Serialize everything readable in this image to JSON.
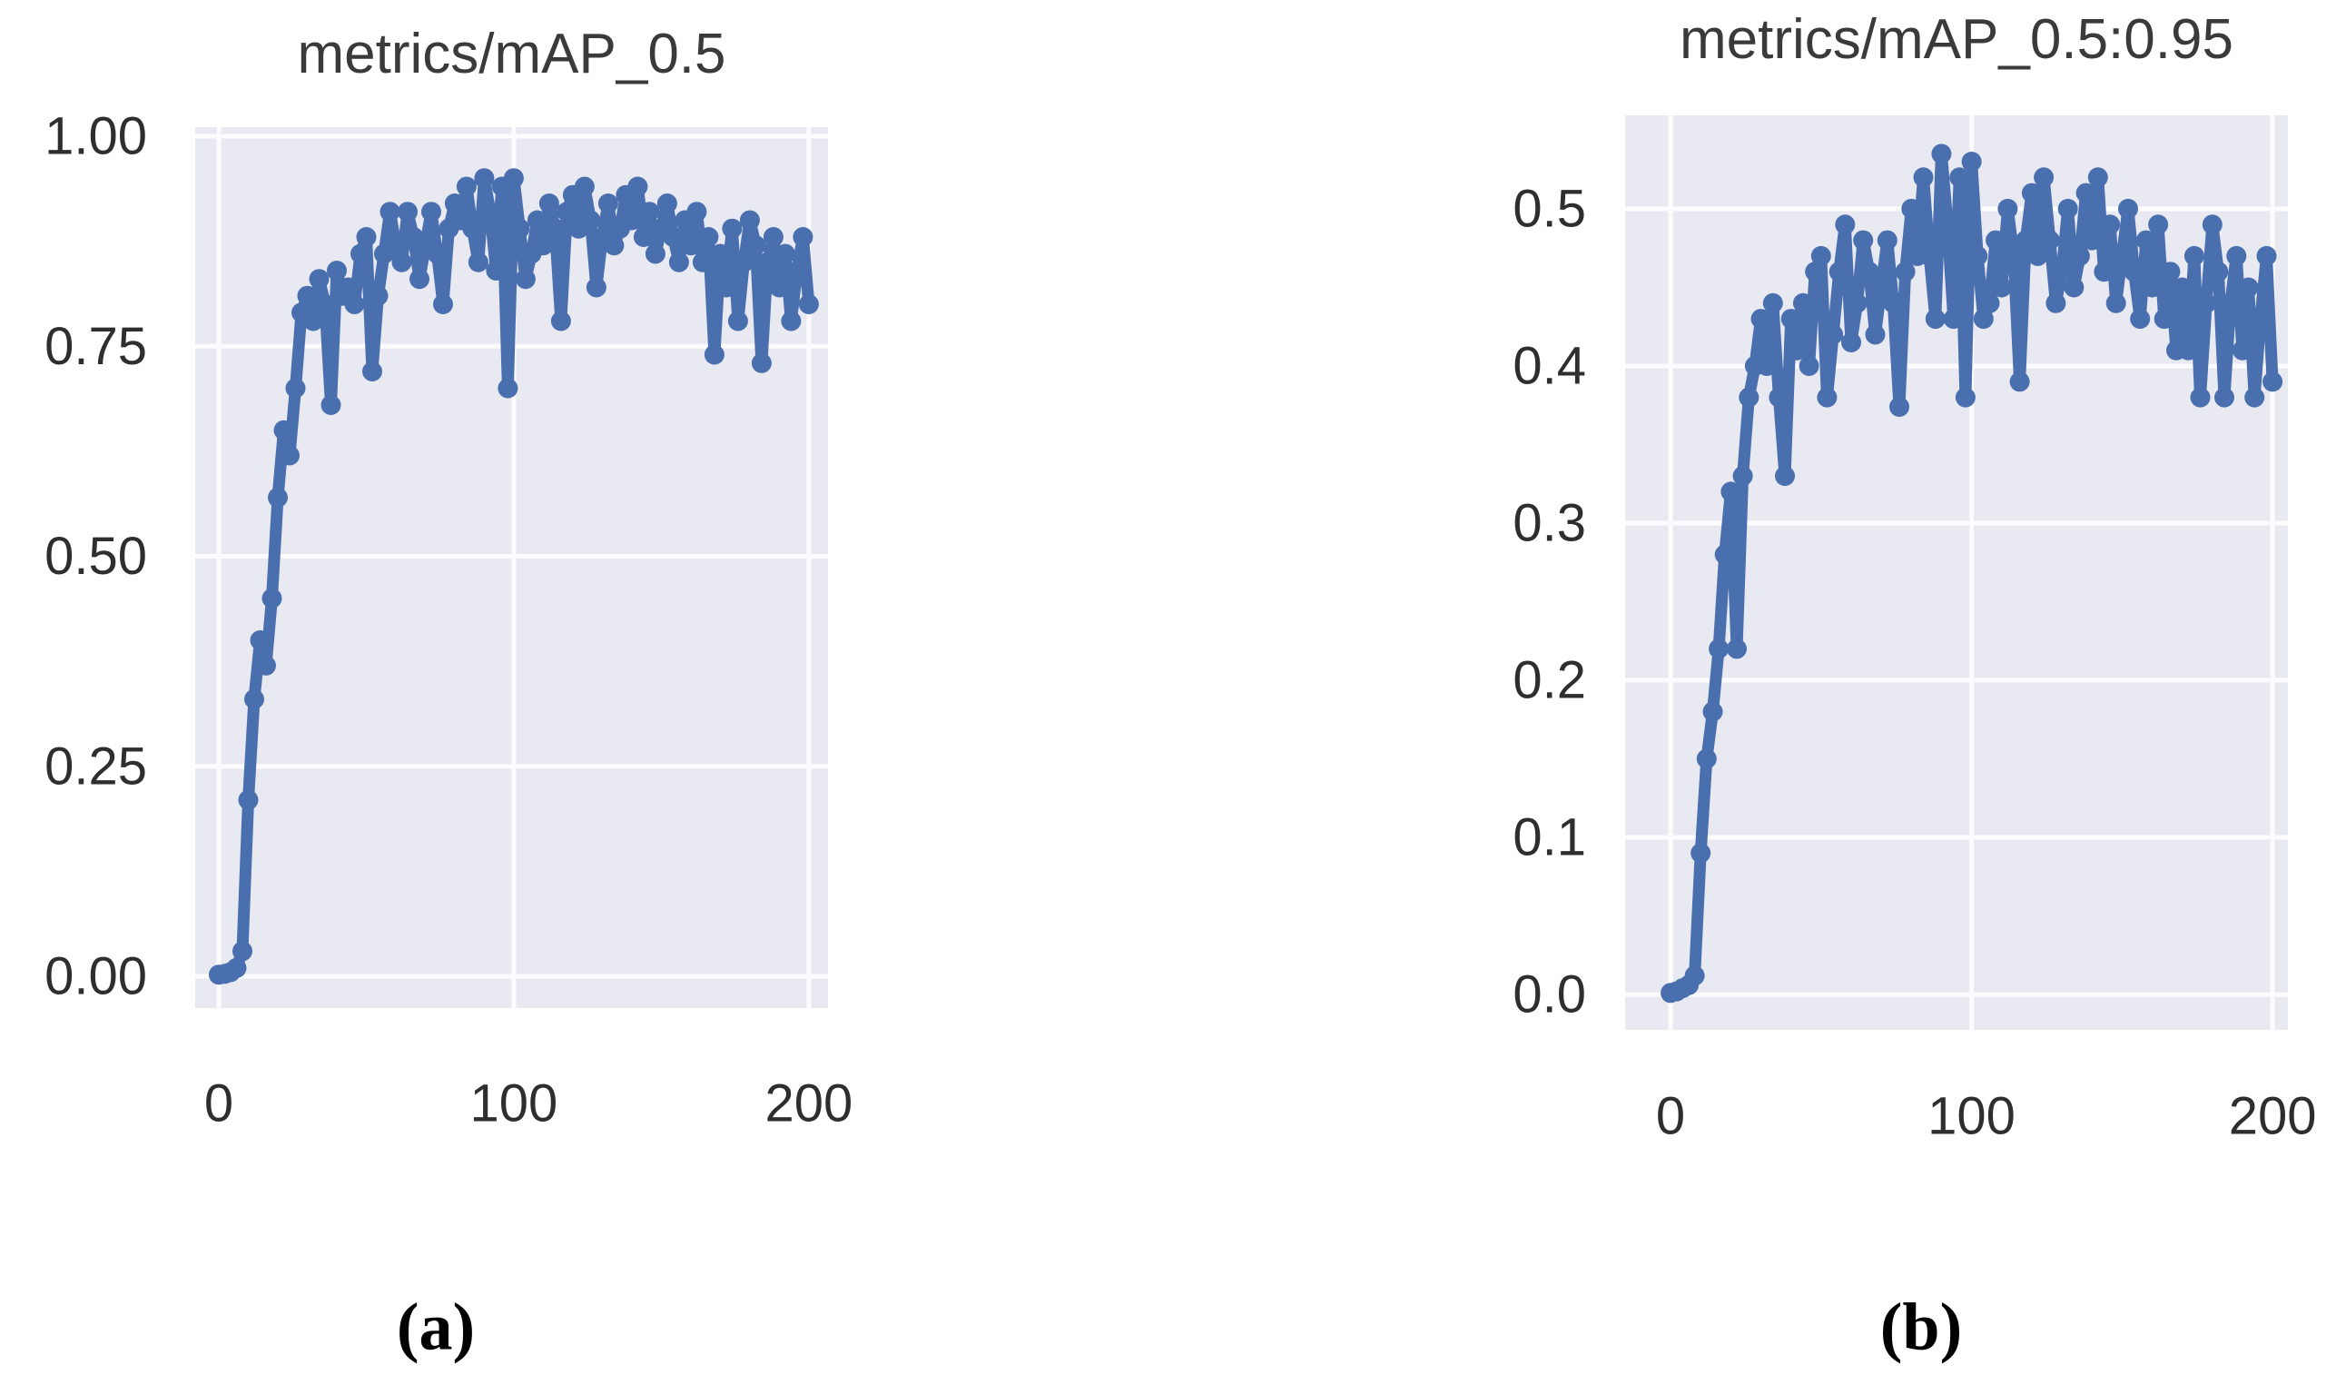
{
  "figure": {
    "background": "#ffffff",
    "line_color": "#4a6fae",
    "plot_bg": "#e9e9f1",
    "grid_color": "#fcfcfe",
    "title_color": "#3a3a3a",
    "tick_color": "#2e2e2e"
  },
  "captions": {
    "a": "(a)",
    "b": "(b)"
  },
  "chart_data": [
    {
      "type": "line",
      "title": "metrics/mAP_0.5",
      "xlabel": "",
      "ylabel": "",
      "legend": "none",
      "grid": true,
      "x_ticks": [
        0,
        100,
        200
      ],
      "x_tick_labels": [
        "0",
        "100",
        "200"
      ],
      "y_ticks": [
        0.0,
        0.25,
        0.5,
        0.75,
        1.0
      ],
      "y_tick_labels": [
        "0.00",
        "0.25",
        "0.50",
        "0.75",
        "1.00"
      ],
      "xlim": [
        -8.0,
        206.5
      ],
      "ylim": [
        -0.0378,
        1.0108
      ],
      "x_start": 0,
      "x_step": 2,
      "values": [
        0.002,
        0.003,
        0.005,
        0.01,
        0.03,
        0.21,
        0.33,
        0.4,
        0.37,
        0.45,
        0.57,
        0.65,
        0.62,
        0.7,
        0.79,
        0.81,
        0.78,
        0.83,
        0.8,
        0.68,
        0.84,
        0.81,
        0.82,
        0.8,
        0.86,
        0.88,
        0.72,
        0.81,
        0.86,
        0.91,
        0.87,
        0.85,
        0.91,
        0.88,
        0.83,
        0.87,
        0.91,
        0.86,
        0.8,
        0.89,
        0.92,
        0.9,
        0.94,
        0.89,
        0.85,
        0.95,
        0.91,
        0.84,
        0.94,
        0.7,
        0.95,
        0.89,
        0.83,
        0.86,
        0.9,
        0.87,
        0.92,
        0.89,
        0.78,
        0.91,
        0.93,
        0.89,
        0.94,
        0.9,
        0.82,
        0.88,
        0.92,
        0.87,
        0.89,
        0.93,
        0.9,
        0.94,
        0.88,
        0.91,
        0.86,
        0.89,
        0.92,
        0.88,
        0.85,
        0.9,
        0.87,
        0.91,
        0.85,
        0.88,
        0.74,
        0.86,
        0.82,
        0.89,
        0.78,
        0.85,
        0.9,
        0.87,
        0.73,
        0.85,
        0.88,
        0.82,
        0.86,
        0.78,
        0.84,
        0.88,
        0.8
      ]
    },
    {
      "type": "line",
      "title": "metrics/mAP_0.5:0.95",
      "xlabel": "",
      "ylabel": "",
      "legend": "none",
      "grid": true,
      "x_ticks": [
        0,
        100,
        200
      ],
      "x_tick_labels": [
        "0",
        "100",
        "200"
      ],
      "y_ticks": [
        0.0,
        0.1,
        0.2,
        0.3,
        0.4,
        0.5
      ],
      "y_tick_labels": [
        "0.0",
        "0.1",
        "0.2",
        "0.3",
        "0.4",
        "0.5"
      ],
      "xlim": [
        -15.1,
        205.1
      ],
      "ylim": [
        -0.0225,
        0.5595
      ],
      "x_start": 0,
      "x_step": 2,
      "values": [
        0.001,
        0.002,
        0.004,
        0.006,
        0.012,
        0.09,
        0.15,
        0.18,
        0.22,
        0.28,
        0.32,
        0.22,
        0.33,
        0.38,
        0.4,
        0.43,
        0.4,
        0.44,
        0.38,
        0.33,
        0.43,
        0.41,
        0.44,
        0.4,
        0.46,
        0.47,
        0.38,
        0.42,
        0.46,
        0.49,
        0.415,
        0.44,
        0.48,
        0.46,
        0.42,
        0.45,
        0.48,
        0.44,
        0.374,
        0.46,
        0.5,
        0.47,
        0.52,
        0.47,
        0.43,
        0.535,
        0.49,
        0.43,
        0.52,
        0.38,
        0.53,
        0.47,
        0.43,
        0.44,
        0.48,
        0.45,
        0.5,
        0.47,
        0.39,
        0.48,
        0.51,
        0.47,
        0.52,
        0.48,
        0.44,
        0.46,
        0.5,
        0.45,
        0.47,
        0.51,
        0.48,
        0.52,
        0.46,
        0.49,
        0.44,
        0.47,
        0.5,
        0.46,
        0.43,
        0.48,
        0.45,
        0.49,
        0.43,
        0.46,
        0.41,
        0.45,
        0.41,
        0.47,
        0.38,
        0.44,
        0.49,
        0.46,
        0.38,
        0.44,
        0.47,
        0.41,
        0.45,
        0.38,
        0.43,
        0.47,
        0.39
      ]
    }
  ]
}
